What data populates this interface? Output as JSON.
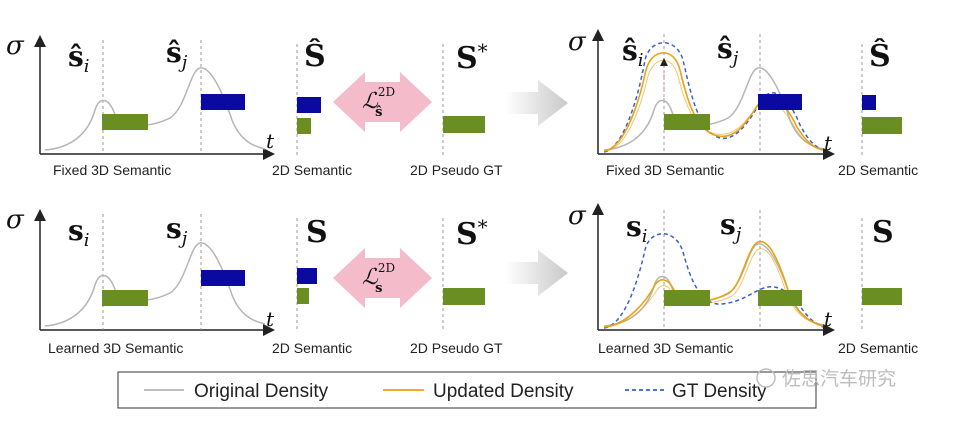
{
  "captions": {
    "fixed_3d": "Fixed 3D Semantic",
    "learned_3d": "Learned 3D Semantic",
    "sem_2d": "2D Semantic",
    "pseudo_gt": "2D Pseudo GT"
  },
  "axes": {
    "sigma": "σ",
    "t": "t"
  },
  "math": {
    "s_hat": "ŝ",
    "s": "s",
    "i": "i",
    "j": "j",
    "S_hat": "Ŝ",
    "S": "S",
    "S_star": "S",
    "star": "*",
    "loss_L": "ℒ",
    "loss_sup": "2D",
    "loss_sub_hat": "ŝ",
    "loss_sub": "s"
  },
  "legend": {
    "original": "Original Density",
    "updated": "Updated Density",
    "gt": "GT Density"
  },
  "watermark": "佐思汽车研究",
  "colors": {
    "green": "#6b8e23",
    "blue": "#0a0aa0",
    "gray_curve": "#b5b5b5",
    "orange_curve": "#e8a317",
    "gt_curve": "#3a5fcd",
    "pink_arrow": "#f4bccb",
    "gray_arrow": "#cfcfcf"
  }
}
